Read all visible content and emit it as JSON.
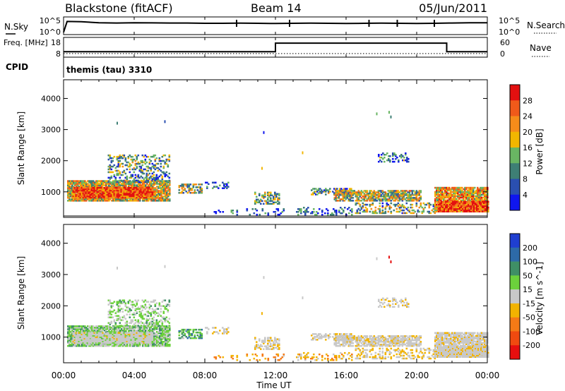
{
  "header": {
    "station": "Blackstone (fitACF)",
    "beam": "Beam 14",
    "date": "05/Jun/2011"
  },
  "chart_data": [
    {
      "type": "line",
      "panel": "noise",
      "left_label": "N.Sky",
      "right_label": "N.Search",
      "left_ticks": [
        "10^5",
        "10^0"
      ],
      "right_ticks": [
        "10^5",
        "10^0"
      ],
      "x_hours": [
        0,
        0.2,
        1,
        2,
        3,
        4,
        5,
        6,
        7,
        8,
        9,
        10,
        11,
        12,
        13,
        14,
        15,
        16,
        17,
        18,
        19,
        20,
        21,
        22,
        23,
        24
      ],
      "sky_level": [
        0.1,
        0.8,
        0.78,
        0.72,
        0.7,
        0.72,
        0.71,
        0.7,
        0.7,
        0.68,
        0.68,
        0.69,
        0.68,
        0.67,
        0.68,
        0.69,
        0.68,
        0.67,
        0.68,
        0.69,
        0.68,
        0.67,
        0.68,
        0.7,
        0.72,
        0.72
      ],
      "sky_spikes_hours": [
        9.8,
        12.8,
        17.3,
        18.9,
        21.0
      ]
    },
    {
      "type": "line",
      "panel": "frequency",
      "left_label": "Freq. [MHz]",
      "right_label": "Nave",
      "left_ticks": [
        "18",
        "8"
      ],
      "right_ticks": [
        "60",
        "0"
      ],
      "freq_steps": [
        {
          "from": 0,
          "to": 12,
          "value": 11.2
        },
        {
          "from": 12,
          "to": 21.7,
          "value": 17.0
        },
        {
          "from": 21.7,
          "to": 24,
          "value": 11.2
        }
      ],
      "nave": 10
    },
    {
      "type": "text",
      "panel": "cpid",
      "label": "CPID",
      "value": "themis (tau) 3310"
    },
    {
      "type": "heatmap",
      "panel": "power",
      "ylabel": "Slant Range [km]",
      "yticks": [
        "1000",
        "2000",
        "3000",
        "4000"
      ],
      "colorbar_label": "Power [dB]",
      "colorbar_ticks": [
        "4",
        "8",
        "12",
        "16",
        "20",
        "24",
        "28"
      ],
      "colorbar_colors": [
        "#0f16ee",
        "#2a4fb0",
        "#3e7f75",
        "#69b563",
        "#f2b600",
        "#f68c1a",
        "#f05a1a",
        "#e31010"
      ],
      "ylim": [
        180,
        4600
      ]
    },
    {
      "type": "heatmap",
      "panel": "velocity",
      "ylabel": "Slant Range [km]",
      "yticks": [
        "1000",
        "2000",
        "3000",
        "4000"
      ],
      "colorbar_label": "Velocity [m s^-1]",
      "colorbar_ticks": [
        "200",
        "100",
        "50",
        "15",
        "-15",
        "-50",
        "-100",
        "-200"
      ],
      "colorbar_colors": [
        "#1f3fd0",
        "#2d6aa8",
        "#3f8f66",
        "#6cd13c",
        "#c8c8c8",
        "#f2b300",
        "#f57a16",
        "#f04a10",
        "#e60f0f"
      ],
      "ylim": [
        180,
        4600
      ],
      "xticks": [
        "00:00",
        "04:00",
        "08:00",
        "12:00",
        "16:00",
        "20:00",
        "00:00"
      ],
      "xlabel": "Time UT"
    }
  ]
}
